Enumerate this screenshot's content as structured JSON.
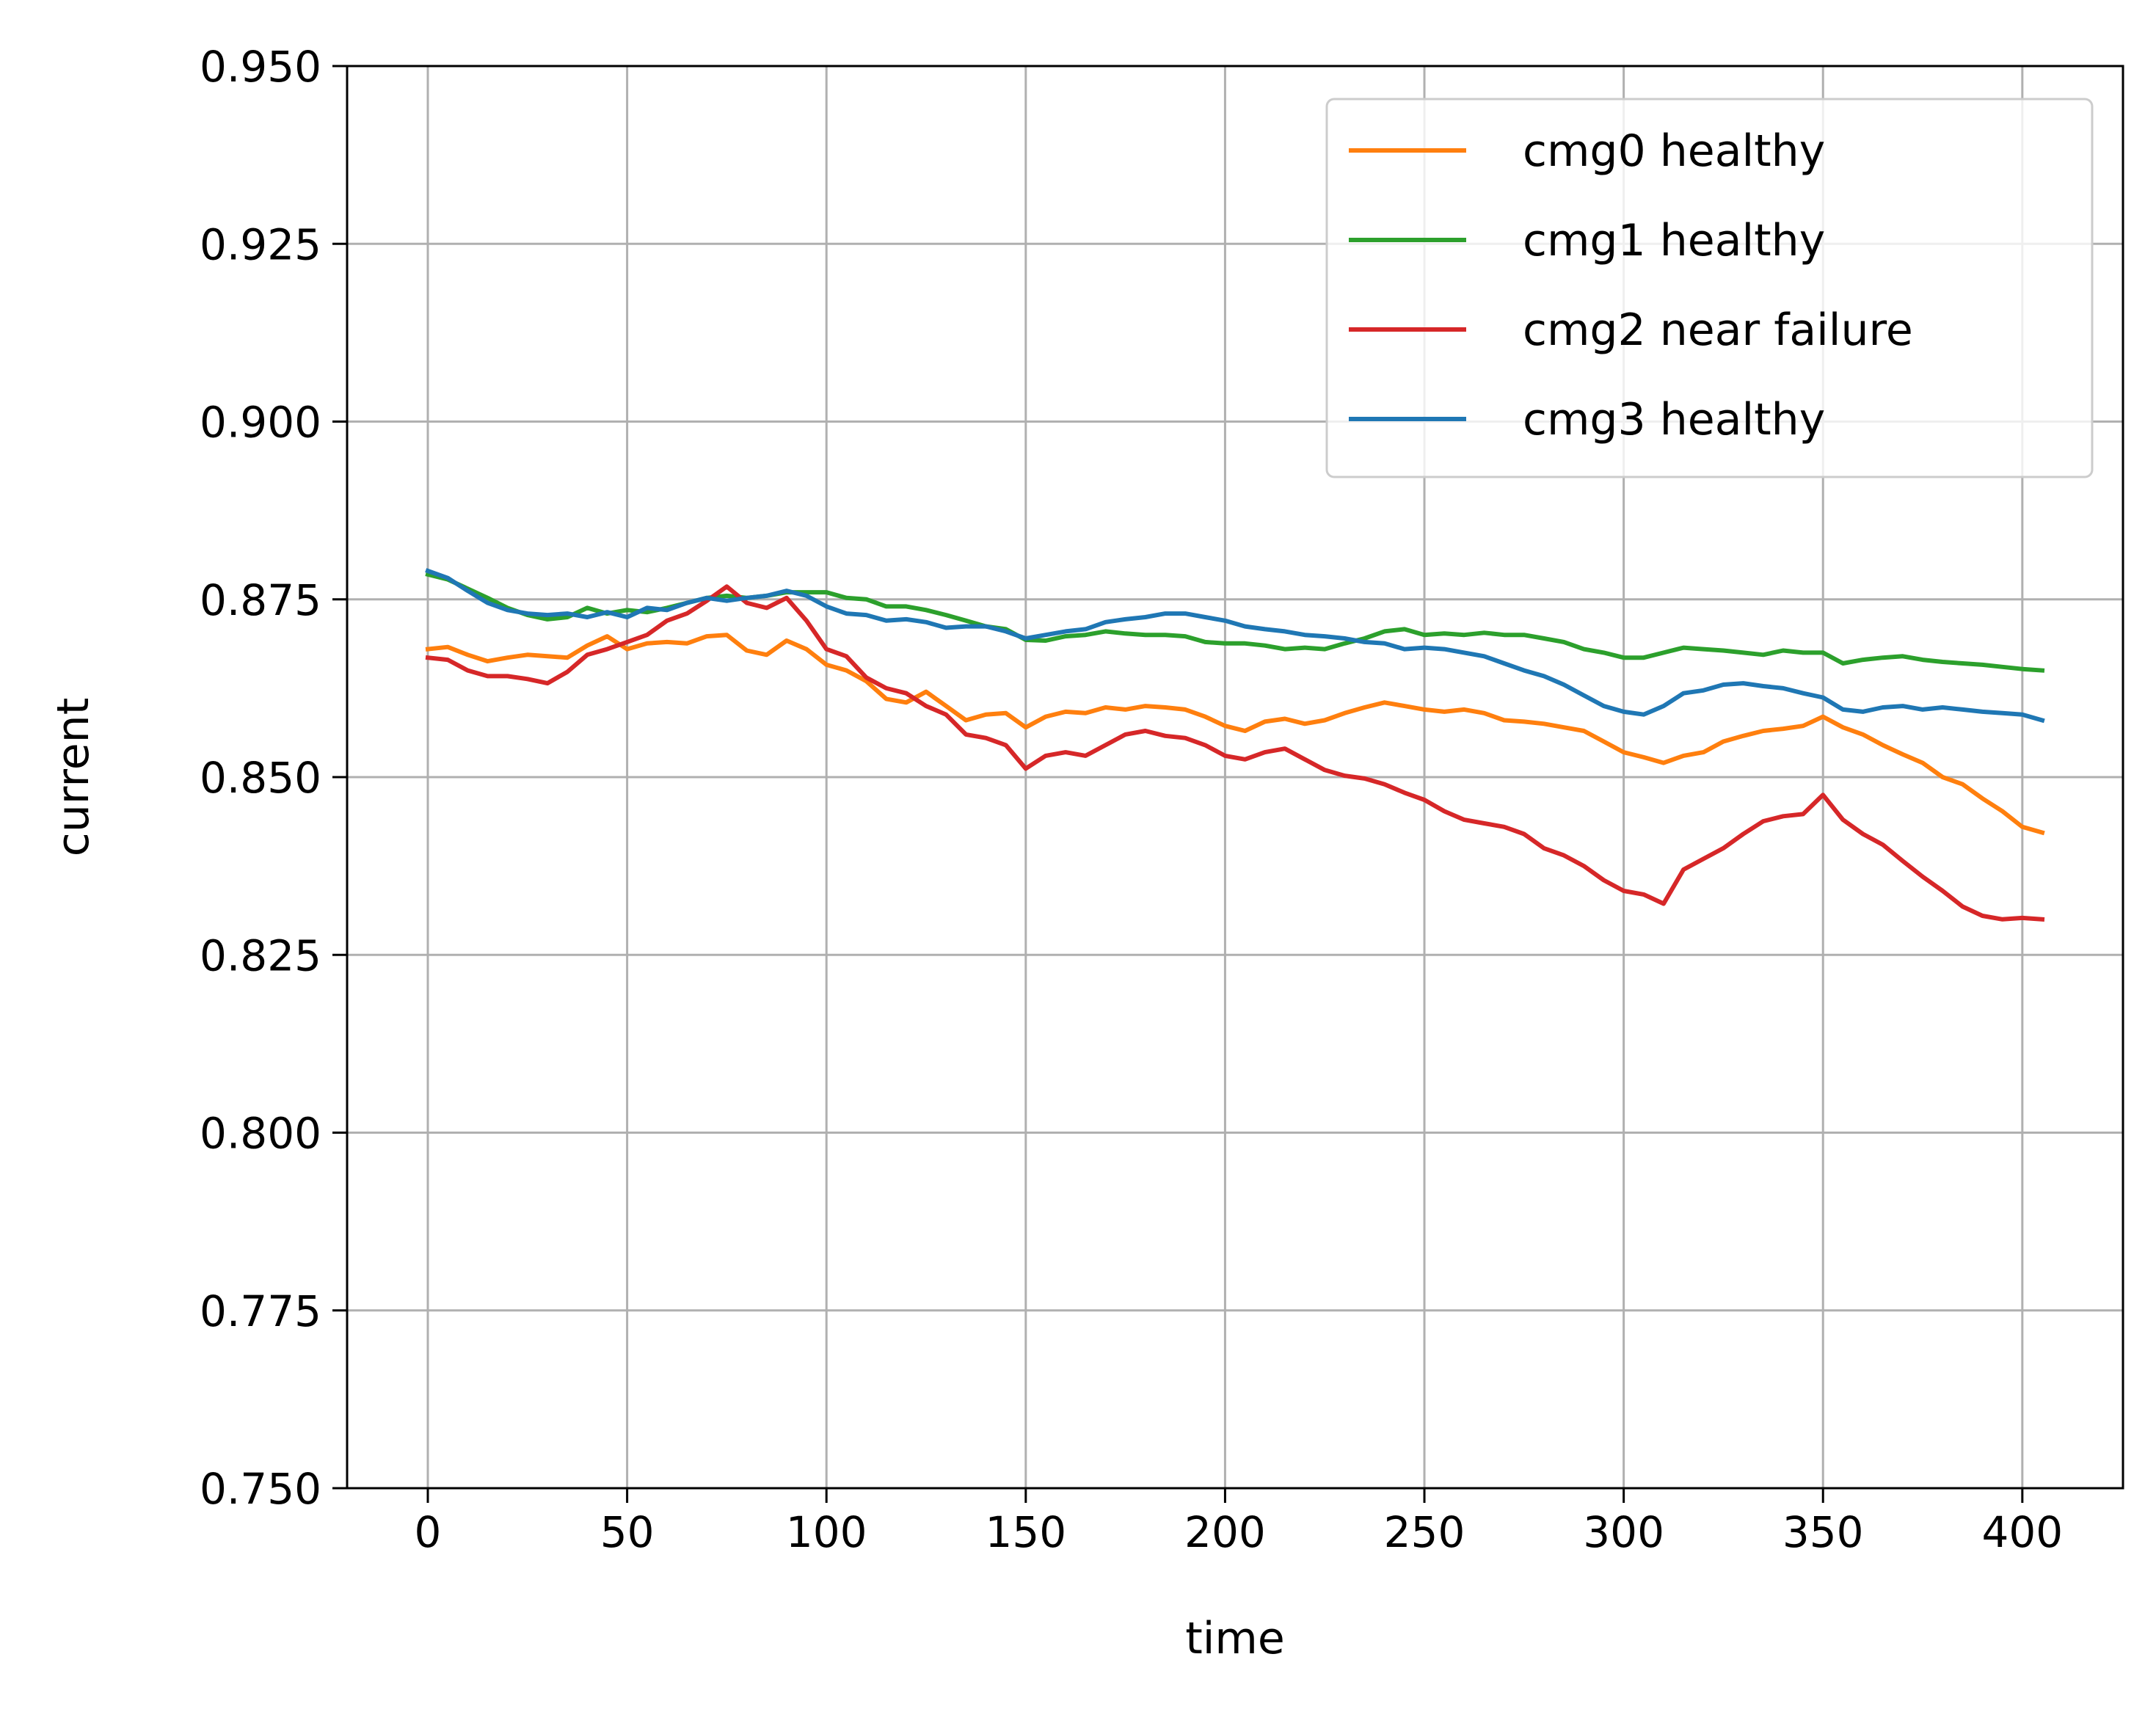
{
  "chart_data": {
    "type": "line",
    "title": "",
    "xlabel": "time",
    "ylabel": "current",
    "xlim": [
      -20.25,
      425.25
    ],
    "ylim": [
      0.75,
      0.95
    ],
    "xticks": [
      0,
      50,
      100,
      150,
      200,
      250,
      300,
      350,
      400
    ],
    "xtick_labels": [
      "0",
      "50",
      "100",
      "150",
      "200",
      "250",
      "300",
      "350",
      "400"
    ],
    "yticks": [
      0.75,
      0.775,
      0.8,
      0.825,
      0.85,
      0.875,
      0.9,
      0.925,
      0.95
    ],
    "ytick_labels": [
      "0.750",
      "0.775",
      "0.800",
      "0.825",
      "0.850",
      "0.875",
      "0.900",
      "0.925",
      "0.950"
    ],
    "grid": true,
    "legend_position": "top-right",
    "series": [
      {
        "name": "cmg0 healthy",
        "color": "#ff7f0e",
        "x": [
          0,
          5,
          10,
          15,
          20,
          25,
          30,
          35,
          40,
          45,
          50,
          55,
          60,
          65,
          70,
          75,
          80,
          85,
          90,
          95,
          100,
          105,
          110,
          115,
          120,
          125,
          130,
          135,
          140,
          145,
          150,
          155,
          160,
          165,
          170,
          175,
          180,
          185,
          190,
          195,
          200,
          205,
          210,
          215,
          220,
          225,
          230,
          235,
          240,
          245,
          250,
          255,
          260,
          265,
          270,
          275,
          280,
          285,
          290,
          295,
          300,
          305,
          310,
          315,
          320,
          325,
          330,
          335,
          340,
          345,
          350,
          355,
          360,
          365,
          370,
          375,
          380,
          385,
          390,
          395,
          400,
          405
        ],
        "y": [
          0.868,
          0.8683,
          0.8672,
          0.8663,
          0.8668,
          0.8672,
          0.867,
          0.8668,
          0.8685,
          0.8698,
          0.868,
          0.8688,
          0.869,
          0.8688,
          0.8698,
          0.87,
          0.8678,
          0.8672,
          0.8692,
          0.868,
          0.8658,
          0.865,
          0.8635,
          0.861,
          0.8605,
          0.862,
          0.86,
          0.858,
          0.8588,
          0.859,
          0.857,
          0.8585,
          0.8592,
          0.859,
          0.8598,
          0.8595,
          0.86,
          0.8598,
          0.8595,
          0.8585,
          0.8572,
          0.8565,
          0.8578,
          0.8582,
          0.8575,
          0.858,
          0.859,
          0.8598,
          0.8605,
          0.86,
          0.8595,
          0.8592,
          0.8595,
          0.859,
          0.858,
          0.8578,
          0.8575,
          0.857,
          0.8565,
          0.855,
          0.8535,
          0.8528,
          0.852,
          0.853,
          0.8535,
          0.855,
          0.8558,
          0.8565,
          0.8568,
          0.8572,
          0.8585,
          0.857,
          0.856,
          0.8545,
          0.8532,
          0.852,
          0.85,
          0.849,
          0.847,
          0.8452,
          0.843,
          0.8422
        ]
      },
      {
        "name": "cmg1 healthy",
        "color": "#2ca02c",
        "x": [
          0,
          5,
          10,
          15,
          20,
          25,
          30,
          35,
          40,
          45,
          50,
          55,
          60,
          65,
          70,
          75,
          80,
          85,
          90,
          95,
          100,
          105,
          110,
          115,
          120,
          125,
          130,
          135,
          140,
          145,
          150,
          155,
          160,
          165,
          170,
          175,
          180,
          185,
          190,
          195,
          200,
          205,
          210,
          215,
          220,
          225,
          230,
          235,
          240,
          245,
          250,
          255,
          260,
          265,
          270,
          275,
          280,
          285,
          290,
          295,
          300,
          305,
          310,
          315,
          320,
          325,
          330,
          335,
          340,
          345,
          350,
          355,
          360,
          365,
          370,
          375,
          380,
          385,
          390,
          395,
          400,
          405
        ],
        "y": [
          0.8785,
          0.8778,
          0.8765,
          0.8752,
          0.8738,
          0.8728,
          0.8722,
          0.8725,
          0.8738,
          0.873,
          0.8735,
          0.8732,
          0.8738,
          0.8745,
          0.8752,
          0.8755,
          0.8752,
          0.8755,
          0.876,
          0.876,
          0.876,
          0.8752,
          0.875,
          0.874,
          0.874,
          0.8735,
          0.8728,
          0.872,
          0.8712,
          0.8708,
          0.8693,
          0.8692,
          0.8698,
          0.87,
          0.8705,
          0.8702,
          0.87,
          0.87,
          0.8698,
          0.869,
          0.8688,
          0.8688,
          0.8685,
          0.868,
          0.8682,
          0.868,
          0.8688,
          0.8695,
          0.8705,
          0.8708,
          0.87,
          0.8702,
          0.87,
          0.8703,
          0.87,
          0.87,
          0.8695,
          0.869,
          0.868,
          0.8675,
          0.8668,
          0.8668,
          0.8675,
          0.8682,
          0.868,
          0.8678,
          0.8675,
          0.8672,
          0.8678,
          0.8675,
          0.8675,
          0.866,
          0.8665,
          0.8668,
          0.867,
          0.8665,
          0.8662,
          0.866,
          0.8658,
          0.8655,
          0.8652,
          0.865
        ]
      },
      {
        "name": "cmg2 near failure",
        "color": "#d62728",
        "x": [
          0,
          5,
          10,
          15,
          20,
          25,
          30,
          35,
          40,
          45,
          50,
          55,
          60,
          65,
          70,
          75,
          80,
          85,
          90,
          95,
          100,
          105,
          110,
          115,
          120,
          125,
          130,
          135,
          140,
          145,
          150,
          155,
          160,
          165,
          170,
          175,
          180,
          185,
          190,
          195,
          200,
          205,
          210,
          215,
          220,
          225,
          230,
          235,
          240,
          245,
          250,
          255,
          260,
          265,
          270,
          275,
          280,
          285,
          290,
          295,
          300,
          305,
          310,
          315,
          320,
          325,
          330,
          335,
          340,
          345,
          350,
          355,
          360,
          365,
          370,
          375,
          380,
          385,
          390,
          395,
          400,
          405
        ],
        "y": [
          0.8668,
          0.8665,
          0.865,
          0.8642,
          0.8642,
          0.8638,
          0.8632,
          0.8648,
          0.8672,
          0.868,
          0.869,
          0.87,
          0.872,
          0.873,
          0.8748,
          0.8768,
          0.8745,
          0.8738,
          0.8752,
          0.872,
          0.868,
          0.867,
          0.864,
          0.8625,
          0.8618,
          0.86,
          0.8588,
          0.856,
          0.8555,
          0.8545,
          0.8512,
          0.853,
          0.8535,
          0.853,
          0.8545,
          0.856,
          0.8565,
          0.8558,
          0.8555,
          0.8545,
          0.853,
          0.8525,
          0.8535,
          0.854,
          0.8525,
          0.851,
          0.8502,
          0.8498,
          0.849,
          0.8478,
          0.8468,
          0.8452,
          0.844,
          0.8435,
          0.843,
          0.842,
          0.84,
          0.839,
          0.8375,
          0.8355,
          0.834,
          0.8335,
          0.8322,
          0.837,
          0.8385,
          0.84,
          0.842,
          0.8438,
          0.8445,
          0.8448,
          0.8475,
          0.844,
          0.842,
          0.8405,
          0.8382,
          0.836,
          0.834,
          0.8318,
          0.8305,
          0.83,
          0.8302,
          0.83
        ]
      },
      {
        "name": "cmg3 healthy",
        "color": "#1f77b4",
        "x": [
          0,
          5,
          10,
          15,
          20,
          25,
          30,
          35,
          40,
          45,
          50,
          55,
          60,
          65,
          70,
          75,
          80,
          85,
          90,
          95,
          100,
          105,
          110,
          115,
          120,
          125,
          130,
          135,
          140,
          145,
          150,
          155,
          160,
          165,
          170,
          175,
          180,
          185,
          190,
          195,
          200,
          205,
          210,
          215,
          220,
          225,
          230,
          235,
          240,
          245,
          250,
          255,
          260,
          265,
          270,
          275,
          280,
          285,
          290,
          295,
          300,
          305,
          310,
          315,
          320,
          325,
          330,
          335,
          340,
          345,
          350,
          355,
          360,
          365,
          370,
          375,
          380,
          385,
          390,
          395,
          400,
          405
        ],
        "y": [
          0.879,
          0.878,
          0.8762,
          0.8745,
          0.8735,
          0.873,
          0.8728,
          0.873,
          0.8725,
          0.8732,
          0.8725,
          0.8738,
          0.8735,
          0.8745,
          0.8752,
          0.8748,
          0.8752,
          0.8755,
          0.8762,
          0.8755,
          0.874,
          0.873,
          0.8728,
          0.872,
          0.8722,
          0.8718,
          0.871,
          0.8712,
          0.8712,
          0.8705,
          0.8695,
          0.87,
          0.8705,
          0.8708,
          0.8718,
          0.8722,
          0.8725,
          0.873,
          0.873,
          0.8725,
          0.872,
          0.8712,
          0.8708,
          0.8705,
          0.87,
          0.8698,
          0.8695,
          0.869,
          0.8688,
          0.868,
          0.8682,
          0.868,
          0.8675,
          0.867,
          0.866,
          0.865,
          0.8642,
          0.863,
          0.8615,
          0.86,
          0.8592,
          0.8588,
          0.86,
          0.8618,
          0.8622,
          0.863,
          0.8632,
          0.8628,
          0.8625,
          0.8618,
          0.8612,
          0.8595,
          0.8592,
          0.8598,
          0.86,
          0.8595,
          0.8598,
          0.8595,
          0.8592,
          0.859,
          0.8588,
          0.858
        ]
      }
    ]
  }
}
